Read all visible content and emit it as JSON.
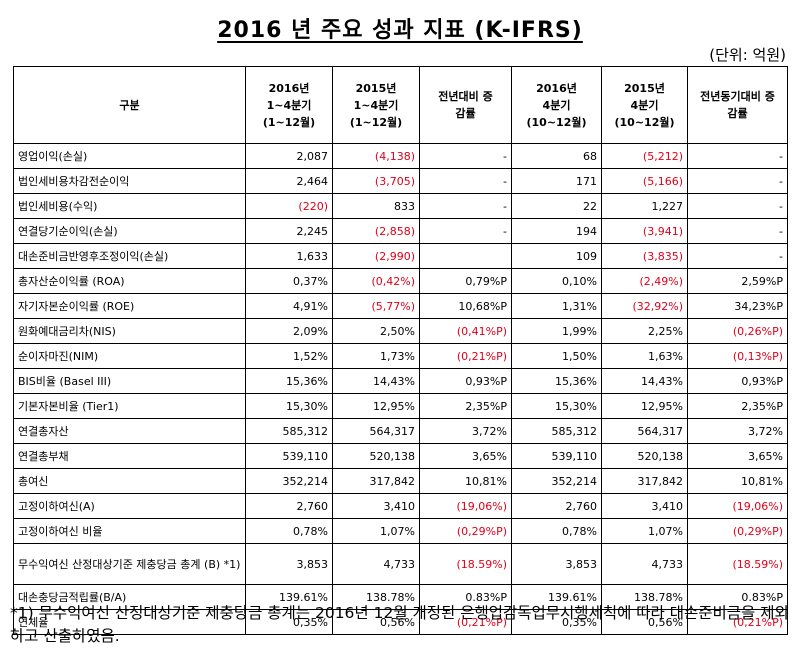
{
  "title": "2016 년 주요 성과 지표 (K-IFRS)",
  "unit": "(단위: 억원)",
  "headers": {
    "category": "구분",
    "c1": [
      "2016년",
      "1~4분기",
      "(1~12월)"
    ],
    "c2": [
      "2015년",
      "1~4분기",
      "(1~12월)"
    ],
    "c3": [
      "전년대비 증",
      "감률"
    ],
    "c4": [
      "2016년",
      "4분기",
      "(10~12월)"
    ],
    "c5": [
      "2015년",
      "4분기",
      "(10~12월)"
    ],
    "c6": [
      "전년동기대비 증",
      "감률"
    ]
  },
  "rows": [
    {
      "label": "영업이익(손실)",
      "v": [
        "2,087",
        "(4,138)",
        "-",
        "68",
        "(5,212)",
        "-"
      ],
      "neg": [
        false,
        true,
        false,
        false,
        true,
        false
      ]
    },
    {
      "label": "법인세비용차감전순이익",
      "v": [
        "2,464",
        "(3,705)",
        "-",
        "171",
        "(5,166)",
        "-"
      ],
      "neg": [
        false,
        true,
        false,
        false,
        true,
        false
      ]
    },
    {
      "label": "법인세비용(수익)",
      "v": [
        "(220)",
        "833",
        "-",
        "22",
        "1,227",
        "-"
      ],
      "neg": [
        true,
        false,
        false,
        false,
        false,
        false
      ]
    },
    {
      "label": "연결당기순이익(손실)",
      "v": [
        "2,245",
        "(2,858)",
        "-",
        "194",
        "(3,941)",
        "-"
      ],
      "neg": [
        false,
        true,
        false,
        false,
        true,
        false
      ]
    },
    {
      "label": "대손준비금반영후조정이익(손실)",
      "v": [
        "1,633",
        "(2,990)",
        "",
        "109",
        "(3,835)",
        "-"
      ],
      "neg": [
        false,
        true,
        false,
        false,
        true,
        false
      ]
    },
    {
      "label": "총자산순이익률 (ROA)",
      "v": [
        "0,37%",
        "(0,42%)",
        "0,79%P",
        "0,10%",
        "(2,49%)",
        "2,59%P"
      ],
      "neg": [
        false,
        true,
        false,
        false,
        true,
        false
      ]
    },
    {
      "label": "자기자본순이익률 (ROE)",
      "v": [
        "4,91%",
        "(5,77%)",
        "10,68%P",
        "1,31%",
        "(32,92%)",
        "34,23%P"
      ],
      "neg": [
        false,
        true,
        false,
        false,
        true,
        false
      ]
    },
    {
      "label": "원화예대금리차(NIS)",
      "v": [
        "2,09%",
        "2,50%",
        "(0,41%P)",
        "1,99%",
        "2,25%",
        "(0,26%P)"
      ],
      "neg": [
        false,
        false,
        true,
        false,
        false,
        true
      ]
    },
    {
      "label": "순이자마진(NIM)",
      "v": [
        "1,52%",
        "1,73%",
        "(0,21%P)",
        "1,50%",
        "1,63%",
        "(0,13%P)"
      ],
      "neg": [
        false,
        false,
        true,
        false,
        false,
        true
      ]
    },
    {
      "label": "BIS비율 (Basel III)",
      "v": [
        "15,36%",
        "14,43%",
        "0,93%P",
        "15,36%",
        "14,43%",
        "0,93%P"
      ],
      "neg": [
        false,
        false,
        false,
        false,
        false,
        false
      ]
    },
    {
      "label": "기본자본비율 (Tier1)",
      "v": [
        "15,30%",
        "12,95%",
        "2,35%P",
        "15,30%",
        "12,95%",
        "2,35%P"
      ],
      "neg": [
        false,
        false,
        false,
        false,
        false,
        false
      ]
    },
    {
      "label": "연결총자산",
      "v": [
        "585,312",
        "564,317",
        "3,72%",
        "585,312",
        "564,317",
        "3,72%"
      ],
      "neg": [
        false,
        false,
        false,
        false,
        false,
        false
      ]
    },
    {
      "label": "연결총부채",
      "v": [
        "539,110",
        "520,138",
        "3,65%",
        "539,110",
        "520,138",
        "3,65%"
      ],
      "neg": [
        false,
        false,
        false,
        false,
        false,
        false
      ]
    },
    {
      "label": "총여신",
      "v": [
        "352,214",
        "317,842",
        "10,81%",
        "352,214",
        "317,842",
        "10,81%"
      ],
      "neg": [
        false,
        false,
        false,
        false,
        false,
        false
      ]
    },
    {
      "label": "고정이하여신(A)",
      "v": [
        "2,760",
        "3,410",
        "(19,06%)",
        "2,760",
        "3,410",
        "(19,06%)"
      ],
      "neg": [
        false,
        false,
        true,
        false,
        false,
        true
      ]
    },
    {
      "label": "고정이하여신 비율",
      "v": [
        "0,78%",
        "1,07%",
        "(0,29%P)",
        "0,78%",
        "1,07%",
        "(0,29%P)"
      ],
      "neg": [
        false,
        false,
        true,
        false,
        false,
        true
      ]
    },
    {
      "label": "무수익여신 산정대상기준 제충당금 총계 (B) *1)",
      "v": [
        "3,853",
        "4,733",
        "(18.59%)",
        "3,853",
        "4,733",
        "(18.59%)"
      ],
      "neg": [
        false,
        false,
        true,
        false,
        false,
        true
      ],
      "tall": true
    },
    {
      "label": "대손충당금적립률(B/A)",
      "v": [
        "139.61%",
        "138.78%",
        "0.83%P",
        "139.61%",
        "138.78%",
        "0.83%P"
      ],
      "neg": [
        false,
        false,
        false,
        false,
        false,
        false
      ]
    },
    {
      "label": "연체율",
      "v": [
        "0,35%",
        "0,56%",
        "(0,21%P)",
        "0,35%",
        "0,56%",
        "(0,21%P)"
      ],
      "neg": [
        false,
        false,
        true,
        false,
        false,
        true
      ]
    }
  ],
  "note": "*1) 무수익여신 산정대상기준 제충당금 총계는 2016년 12월 개정된 은행업감독업무시행세칙에 따라 대손준비금을 제외하고 산출하였음.",
  "colors": {
    "negative": "#e0001a"
  }
}
